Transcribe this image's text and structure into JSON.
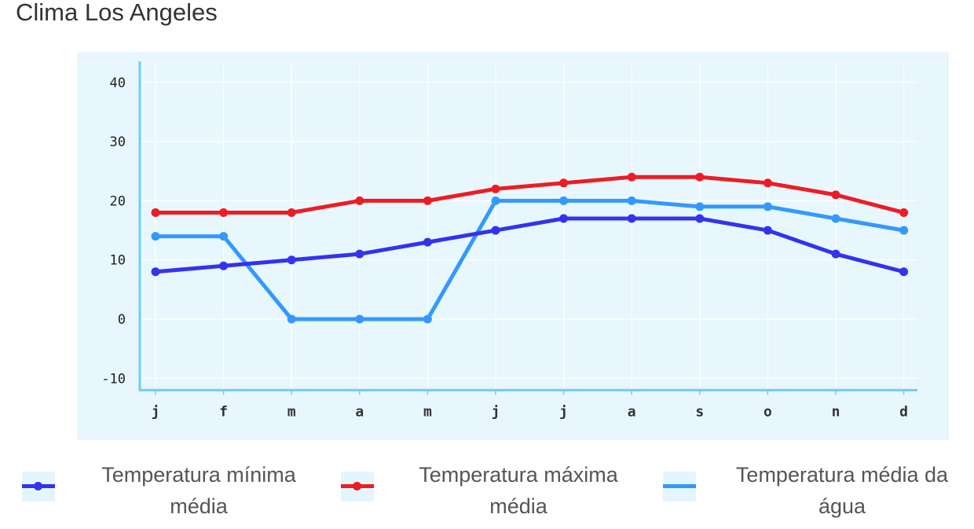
{
  "page": {
    "title": "Clima Los Angeles"
  },
  "colors": {
    "plot_background": "#e8f7fd",
    "axis": "#6ccff0",
    "grid": "#ffffff",
    "series_min": "#3333ee",
    "series_max": "#ee1c25",
    "series_water": "#3399ff"
  },
  "chart_data": {
    "type": "line",
    "title": "Clima Los Angeles",
    "xlabel": "",
    "ylabel": "",
    "categories": [
      "j",
      "f",
      "m",
      "a",
      "m",
      "j",
      "j",
      "a",
      "s",
      "o",
      "n",
      "d"
    ],
    "y_ticks": [
      40,
      30,
      20,
      10,
      0,
      -10
    ],
    "ylim": [
      -12,
      43
    ],
    "grid": true,
    "legend_position": "bottom",
    "series": [
      {
        "name": "Temperatura mínima média",
        "color": "#3333ee",
        "markers": true,
        "values": [
          8,
          9,
          10,
          11,
          13,
          15,
          17,
          17,
          17,
          15,
          11,
          8
        ]
      },
      {
        "name": "Temperatura máxima média",
        "color": "#ee1c25",
        "markers": true,
        "values": [
          18,
          18,
          18,
          20,
          20,
          22,
          23,
          24,
          24,
          23,
          21,
          18
        ]
      },
      {
        "name": "Temperatura média da água",
        "color": "#3399ff",
        "markers": true,
        "values": [
          14,
          14,
          0,
          0,
          0,
          20,
          20,
          20,
          19,
          19,
          17,
          15
        ]
      }
    ]
  },
  "legend": {
    "items": [
      {
        "line1": "Temperatura mínima",
        "line2": "média",
        "icon": "line-with-dot-icon"
      },
      {
        "line1": "Temperatura máxima",
        "line2": "média",
        "icon": "line-with-dot-icon"
      },
      {
        "line1": "Temperatura média da",
        "line2": "água",
        "icon": "line-icon"
      }
    ]
  }
}
